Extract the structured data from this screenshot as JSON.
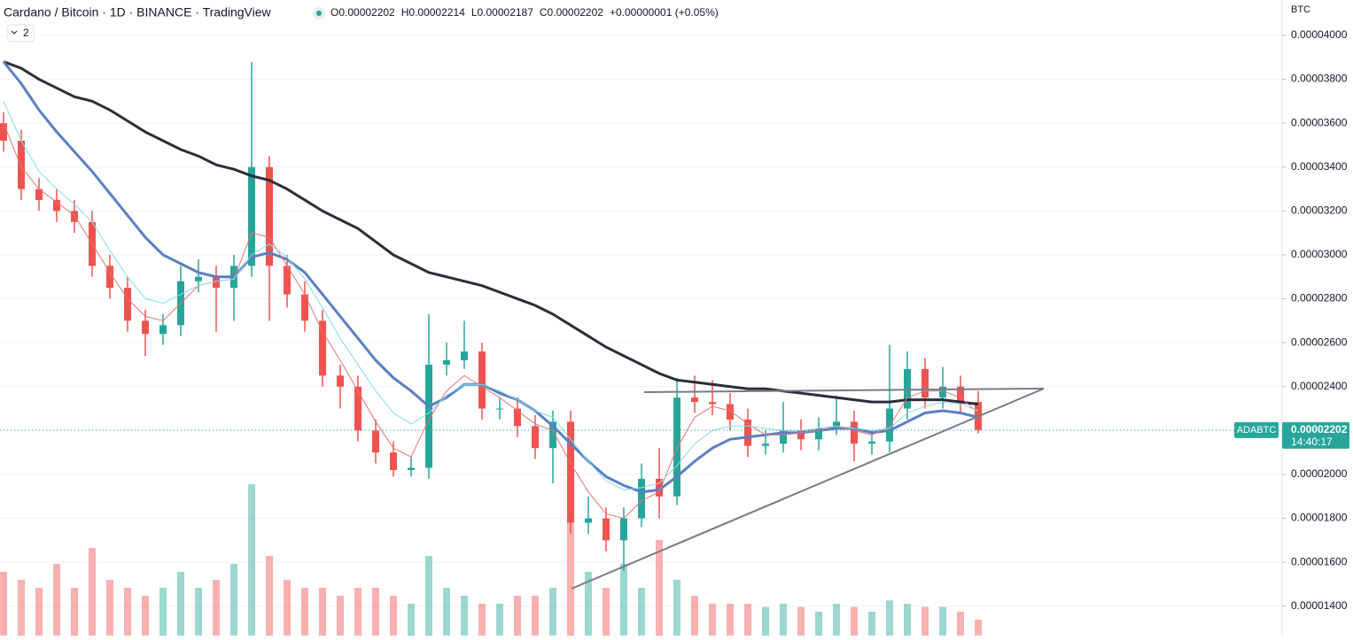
{
  "chart_data": {
    "type": "candlestick",
    "title": "Cardano / Bitcoin · 1D · BINANCE · TradingView",
    "legend_values": [
      "O0.00002202",
      "H0.00002214",
      "L0.00002187",
      "C0.00002202",
      "+0.00000001 (+0.05%)"
    ],
    "indicator_toggle": "2",
    "currency": "BTC",
    "symbol_label": "ADABTC",
    "countdown": "14:40:17",
    "up_color": "#26a69a",
    "down_color": "#ef5350",
    "grid": true,
    "ylim": [
      1.266e-05,
      4.161e-05
    ],
    "yticks": [
      {
        "value": 4e-05,
        "label": "0.00004000"
      },
      {
        "value": 3.8e-05,
        "label": "0.00003800"
      },
      {
        "value": 3.6e-05,
        "label": "0.00003600"
      },
      {
        "value": 3.4e-05,
        "label": "0.00003400"
      },
      {
        "value": 3.2e-05,
        "label": "0.00003200"
      },
      {
        "value": 3e-05,
        "label": "0.00003000"
      },
      {
        "value": 2.8e-05,
        "label": "0.00002800"
      },
      {
        "value": 2.6e-05,
        "label": "0.00002600"
      },
      {
        "value": 2.4e-05,
        "label": "0.00002400"
      },
      {
        "value": 2.2e-05,
        "label": "0.00002200"
      },
      {
        "value": 2e-05,
        "label": "0.00002000"
      },
      {
        "value": 1.8e-05,
        "label": "0.00001800"
      },
      {
        "value": 1.6e-05,
        "label": "0.00001600"
      },
      {
        "value": 1.4e-05,
        "label": "0.00001400"
      }
    ],
    "categories": [
      null,
      null,
      null,
      null,
      null,
      null,
      null,
      null,
      null,
      null,
      null,
      null,
      null,
      null,
      null,
      null,
      null,
      null,
      null,
      null,
      null,
      null,
      null,
      null,
      null,
      null,
      null,
      null,
      null,
      null,
      null,
      null,
      null,
      null,
      null,
      null,
      null,
      null,
      null,
      null,
      null,
      null,
      null,
      null,
      null,
      null,
      null,
      null,
      null,
      null,
      null,
      null,
      null,
      null,
      null,
      null
    ],
    "open": [
      3.6e-05,
      3.52e-05,
      3.3e-05,
      3.25e-05,
      3.2e-05,
      3.15e-05,
      2.95e-05,
      2.85e-05,
      2.7e-05,
      2.64e-05,
      2.68e-05,
      2.88e-05,
      2.9e-05,
      2.85e-05,
      2.95e-05,
      3.4e-05,
      2.95e-05,
      2.82e-05,
      2.7e-05,
      2.45e-05,
      2.4e-05,
      2.2e-05,
      2.1e-05,
      2.02e-05,
      2.03e-05,
      2.5e-05,
      2.52e-05,
      2.56e-05,
      2.3e-05,
      2.3e-05,
      2.22e-05,
      2.12e-05,
      2.24e-05,
      1.78e-05,
      1.8e-05,
      1.7e-05,
      1.8e-05,
      1.98e-05,
      1.9e-05,
      2.35e-05,
      2.33e-05,
      2.32e-05,
      2.25e-05,
      2.13e-05,
      2.14e-05,
      2.2e-05,
      2.16e-05,
      2.21e-05,
      2.24e-05,
      2.14e-05,
      2.15e-05,
      2.3e-05,
      2.48e-05,
      2.35e-05,
      2.4e-05,
      2.33e-05
    ],
    "high": [
      3.65e-05,
      3.57e-05,
      3.35e-05,
      3.3e-05,
      3.25e-05,
      3.2e-05,
      3e-05,
      2.9e-05,
      2.75e-05,
      2.73e-05,
      2.95e-05,
      2.98e-05,
      2.95e-05,
      3e-05,
      3.88e-05,
      3.45e-05,
      3e-05,
      2.88e-05,
      2.75e-05,
      2.5e-05,
      2.45e-05,
      2.25e-05,
      2.15e-05,
      2.08e-05,
      2.73e-05,
      2.6e-05,
      2.7e-05,
      2.6e-05,
      2.35e-05,
      2.35e-05,
      2.27e-05,
      2.29e-05,
      2.29e-05,
      1.9e-05,
      1.85e-05,
      1.85e-05,
      2.05e-05,
      2.12e-05,
      2.44e-05,
      2.45e-05,
      2.43e-05,
      2.37e-05,
      2.3e-05,
      2.2e-05,
      2.33e-05,
      2.25e-05,
      2.26e-05,
      2.36e-05,
      2.29e-05,
      2.2e-05,
      2.59e-05,
      2.56e-05,
      2.53e-05,
      2.49e-05,
      2.45e-05,
      2.38e-05
    ],
    "low": [
      3.47e-05,
      3.25e-05,
      3.2e-05,
      3.15e-05,
      3.1e-05,
      2.9e-05,
      2.8e-05,
      2.65e-05,
      2.54e-05,
      2.59e-05,
      2.63e-05,
      2.83e-05,
      2.65e-05,
      2.7e-05,
      2.9e-05,
      2.7e-05,
      2.76e-05,
      2.65e-05,
      2.4e-05,
      2.3e-05,
      2.15e-05,
      2.05e-05,
      1.99e-05,
      1.99e-05,
      1.98e-05,
      2.45e-05,
      2.48e-05,
      2.25e-05,
      2.25e-05,
      2.17e-05,
      2.07e-05,
      1.96e-05,
      1.73e-05,
      1.73e-05,
      1.65e-05,
      1.56e-05,
      1.76e-05,
      1.8e-05,
      1.86e-05,
      2.28e-05,
      2.27e-05,
      2.2e-05,
      2.08e-05,
      2.09e-05,
      2.1e-05,
      2.11e-05,
      2.11e-05,
      2.18e-05,
      2.06e-05,
      2.09e-05,
      2.1e-05,
      2.25e-05,
      2.3e-05,
      2.3e-05,
      2.28e-05,
      2.187e-05
    ],
    "close": [
      3.52e-05,
      3.3e-05,
      3.25e-05,
      3.2e-05,
      3.15e-05,
      2.95e-05,
      2.85e-05,
      2.7e-05,
      2.64e-05,
      2.68e-05,
      2.88e-05,
      2.9e-05,
      2.85e-05,
      2.95e-05,
      3.4e-05,
      2.95e-05,
      2.82e-05,
      2.7e-05,
      2.45e-05,
      2.4e-05,
      2.2e-05,
      2.1e-05,
      2.02e-05,
      2.03e-05,
      2.5e-05,
      2.52e-05,
      2.56e-05,
      2.3e-05,
      2.3e-05,
      2.22e-05,
      2.12e-05,
      2.24e-05,
      1.78e-05,
      1.8e-05,
      1.7e-05,
      1.8e-05,
      1.98e-05,
      1.9e-05,
      2.35e-05,
      2.33e-05,
      2.32e-05,
      2.25e-05,
      2.13e-05,
      2.14e-05,
      2.2e-05,
      2.16e-05,
      2.21e-05,
      2.24e-05,
      2.14e-05,
      2.15e-05,
      2.3e-05,
      2.48e-05,
      2.35e-05,
      2.4e-05,
      2.33e-05,
      2.202e-05
    ],
    "volume": [
      40,
      35,
      30,
      45,
      30,
      55,
      35,
      30,
      25,
      30,
      40,
      30,
      35,
      45,
      95,
      50,
      35,
      30,
      30,
      25,
      30,
      30,
      25,
      20,
      50,
      30,
      25,
      20,
      20,
      25,
      25,
      30,
      75,
      40,
      30,
      45,
      30,
      60,
      35,
      25,
      20,
      20,
      20,
      18,
      20,
      18,
      15,
      20,
      18,
      15,
      22,
      20,
      18,
      18,
      15,
      10
    ],
    "lines": [
      {
        "color": "#2a2e39",
        "width": 3,
        "values": [
          3.88e-05,
          3.85e-05,
          3.8e-05,
          3.76e-05,
          3.72e-05,
          3.7e-05,
          3.66e-05,
          3.61e-05,
          3.56e-05,
          3.52e-05,
          3.48e-05,
          3.45e-05,
          3.41e-05,
          3.39e-05,
          3.36e-05,
          3.34e-05,
          3.3e-05,
          3.25e-05,
          3.2e-05,
          3.16e-05,
          3.12e-05,
          3.06e-05,
          3e-05,
          2.96e-05,
          2.92e-05,
          2.9e-05,
          2.88e-05,
          2.86e-05,
          2.83e-05,
          2.8e-05,
          2.77e-05,
          2.73e-05,
          2.68e-05,
          2.63e-05,
          2.58e-05,
          2.54e-05,
          2.5e-05,
          2.46e-05,
          2.43e-05,
          2.42e-05,
          2.41e-05,
          2.4e-05,
          2.39e-05,
          2.39e-05,
          2.38e-05,
          2.37e-05,
          2.36e-05,
          2.35e-05,
          2.34e-05,
          2.33e-05,
          2.33e-05,
          2.34e-05,
          2.34e-05,
          2.34e-05,
          2.33e-05,
          2.32e-05
        ]
      },
      {
        "color": "#5b7fc2",
        "width": 3,
        "values": [
          3.88e-05,
          3.78e-05,
          3.66e-05,
          3.56e-05,
          3.47e-05,
          3.38e-05,
          3.28e-05,
          3.18e-05,
          3.08e-05,
          3e-05,
          2.96e-05,
          2.92e-05,
          2.9e-05,
          2.9e-05,
          2.99e-05,
          3.01e-05,
          2.98e-05,
          2.92e-05,
          2.82e-05,
          2.72e-05,
          2.62e-05,
          2.52e-05,
          2.44e-05,
          2.38e-05,
          2.31e-05,
          2.35e-05,
          2.41e-05,
          2.41e-05,
          2.37e-05,
          2.34e-05,
          2.29e-05,
          2.22e-05,
          2.14e-05,
          2.06e-05,
          1.99e-05,
          1.95e-05,
          1.92e-05,
          1.93e-05,
          1.99e-05,
          2.06e-05,
          2.12e-05,
          2.16e-05,
          2.17e-05,
          2.18e-05,
          2.19e-05,
          2.19e-05,
          2.2e-05,
          2.21e-05,
          2.21e-05,
          2.19e-05,
          2.2e-05,
          2.24e-05,
          2.28e-05,
          2.29e-05,
          2.28e-05,
          2.26e-05
        ]
      },
      {
        "color": "#e57373",
        "width": 1,
        "values": [
          3.6e-05,
          3.4e-05,
          3.3e-05,
          3.24e-05,
          3.18e-05,
          3.05e-05,
          2.92e-05,
          2.8e-05,
          2.72e-05,
          2.7e-05,
          2.78e-05,
          2.86e-05,
          2.88e-05,
          2.89e-05,
          3.1e-05,
          3.08e-05,
          2.95e-05,
          2.82e-05,
          2.65e-05,
          2.52e-05,
          2.38e-05,
          2.24e-05,
          2.12e-05,
          2.08e-05,
          2.25e-05,
          2.38e-05,
          2.45e-05,
          2.4e-05,
          2.35e-05,
          2.29e-05,
          2.23e-05,
          2.2e-05,
          2.05e-05,
          1.92e-05,
          1.82e-05,
          1.8e-05,
          1.88e-05,
          1.92e-05,
          2.12e-05,
          2.26e-05,
          2.31e-05,
          2.29e-05,
          2.23e-05,
          2.18e-05,
          2.18e-05,
          2.19e-05,
          2.2e-05,
          2.22e-05,
          2.2e-05,
          2.18e-05,
          2.22e-05,
          2.35e-05,
          2.38e-05,
          2.38e-05,
          2.35e-05,
          2.28e-05
        ]
      },
      {
        "color": "#80deea",
        "width": 1,
        "values": [
          3.7e-05,
          3.52e-05,
          3.38e-05,
          3.3e-05,
          3.23e-05,
          3.15e-05,
          3.02e-05,
          2.9e-05,
          2.8e-05,
          2.78e-05,
          2.82e-05,
          2.86e-05,
          2.88e-05,
          2.89e-05,
          3e-05,
          3.05e-05,
          2.99e-05,
          2.89e-05,
          2.76e-05,
          2.62e-05,
          2.5e-05,
          2.38e-05,
          2.28e-05,
          2.23e-05,
          2.28e-05,
          2.36e-05,
          2.41e-05,
          2.41e-05,
          2.38e-05,
          2.34e-05,
          2.29e-05,
          2.26e-05,
          2.16e-05,
          2.06e-05,
          1.97e-05,
          1.93e-05,
          1.94e-05,
          1.96e-05,
          2.04e-05,
          2.14e-05,
          2.2e-05,
          2.22e-05,
          2.22e-05,
          2.21e-05,
          2.2e-05,
          2.2e-05,
          2.21e-05,
          2.22e-05,
          2.21e-05,
          2.2e-05,
          2.21e-05,
          2.28e-05,
          2.31e-05,
          2.33e-05,
          2.32e-05,
          2.29e-05
        ]
      }
    ]
  }
}
